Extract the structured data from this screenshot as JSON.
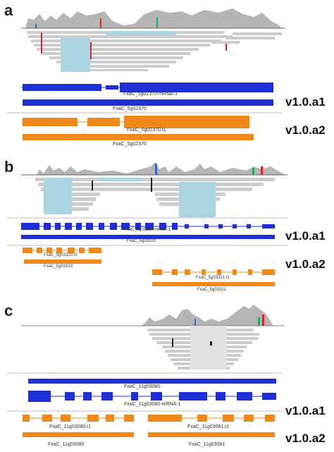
{
  "colors": {
    "a1": "#1f2fd6",
    "a2": "#ef8a1a",
    "coverage": "#b5b5b5",
    "reads": "#cdcdcd",
    "split": "#a9d4e0"
  },
  "panels": [
    {
      "label": "a",
      "tracks": [
        {
          "version": "v1.0.a1",
          "transcript": "FxaC_5g02370-mRNA-1",
          "gene": "FxaC_5g02370"
        },
        {
          "version": "v1.0.a2",
          "transcript": "FxaC_5g02370.t1",
          "gene": "FxaC_5g02370"
        }
      ]
    },
    {
      "label": "b",
      "tracks": [
        {
          "version": "v1.0.a1",
          "transcript": "FxaC_5g03320-mRNA-1",
          "gene": "FxaC_5g03320"
        },
        {
          "version": "v1.0.a2",
          "transcript": "FxaC_5g03320.t1",
          "gene": "FxaC_5g03320",
          "transcript2": "FxaC_5g03321.t1",
          "gene2": "FxaC_5g03321"
        }
      ]
    },
    {
      "label": "c",
      "tracks": [
        {
          "version": "v1.0.a1",
          "transcript": "FxaC_11g03080-mRNA-1",
          "gene": "FxaC_11g03080"
        },
        {
          "version": "v1.0.a2",
          "transcript": "FxaC_11g03080.t1",
          "gene": "FxaC_11g03080",
          "transcript2": "FxaC_11g03081.t1",
          "gene2": "FxaC_11g03081"
        }
      ]
    }
  ]
}
